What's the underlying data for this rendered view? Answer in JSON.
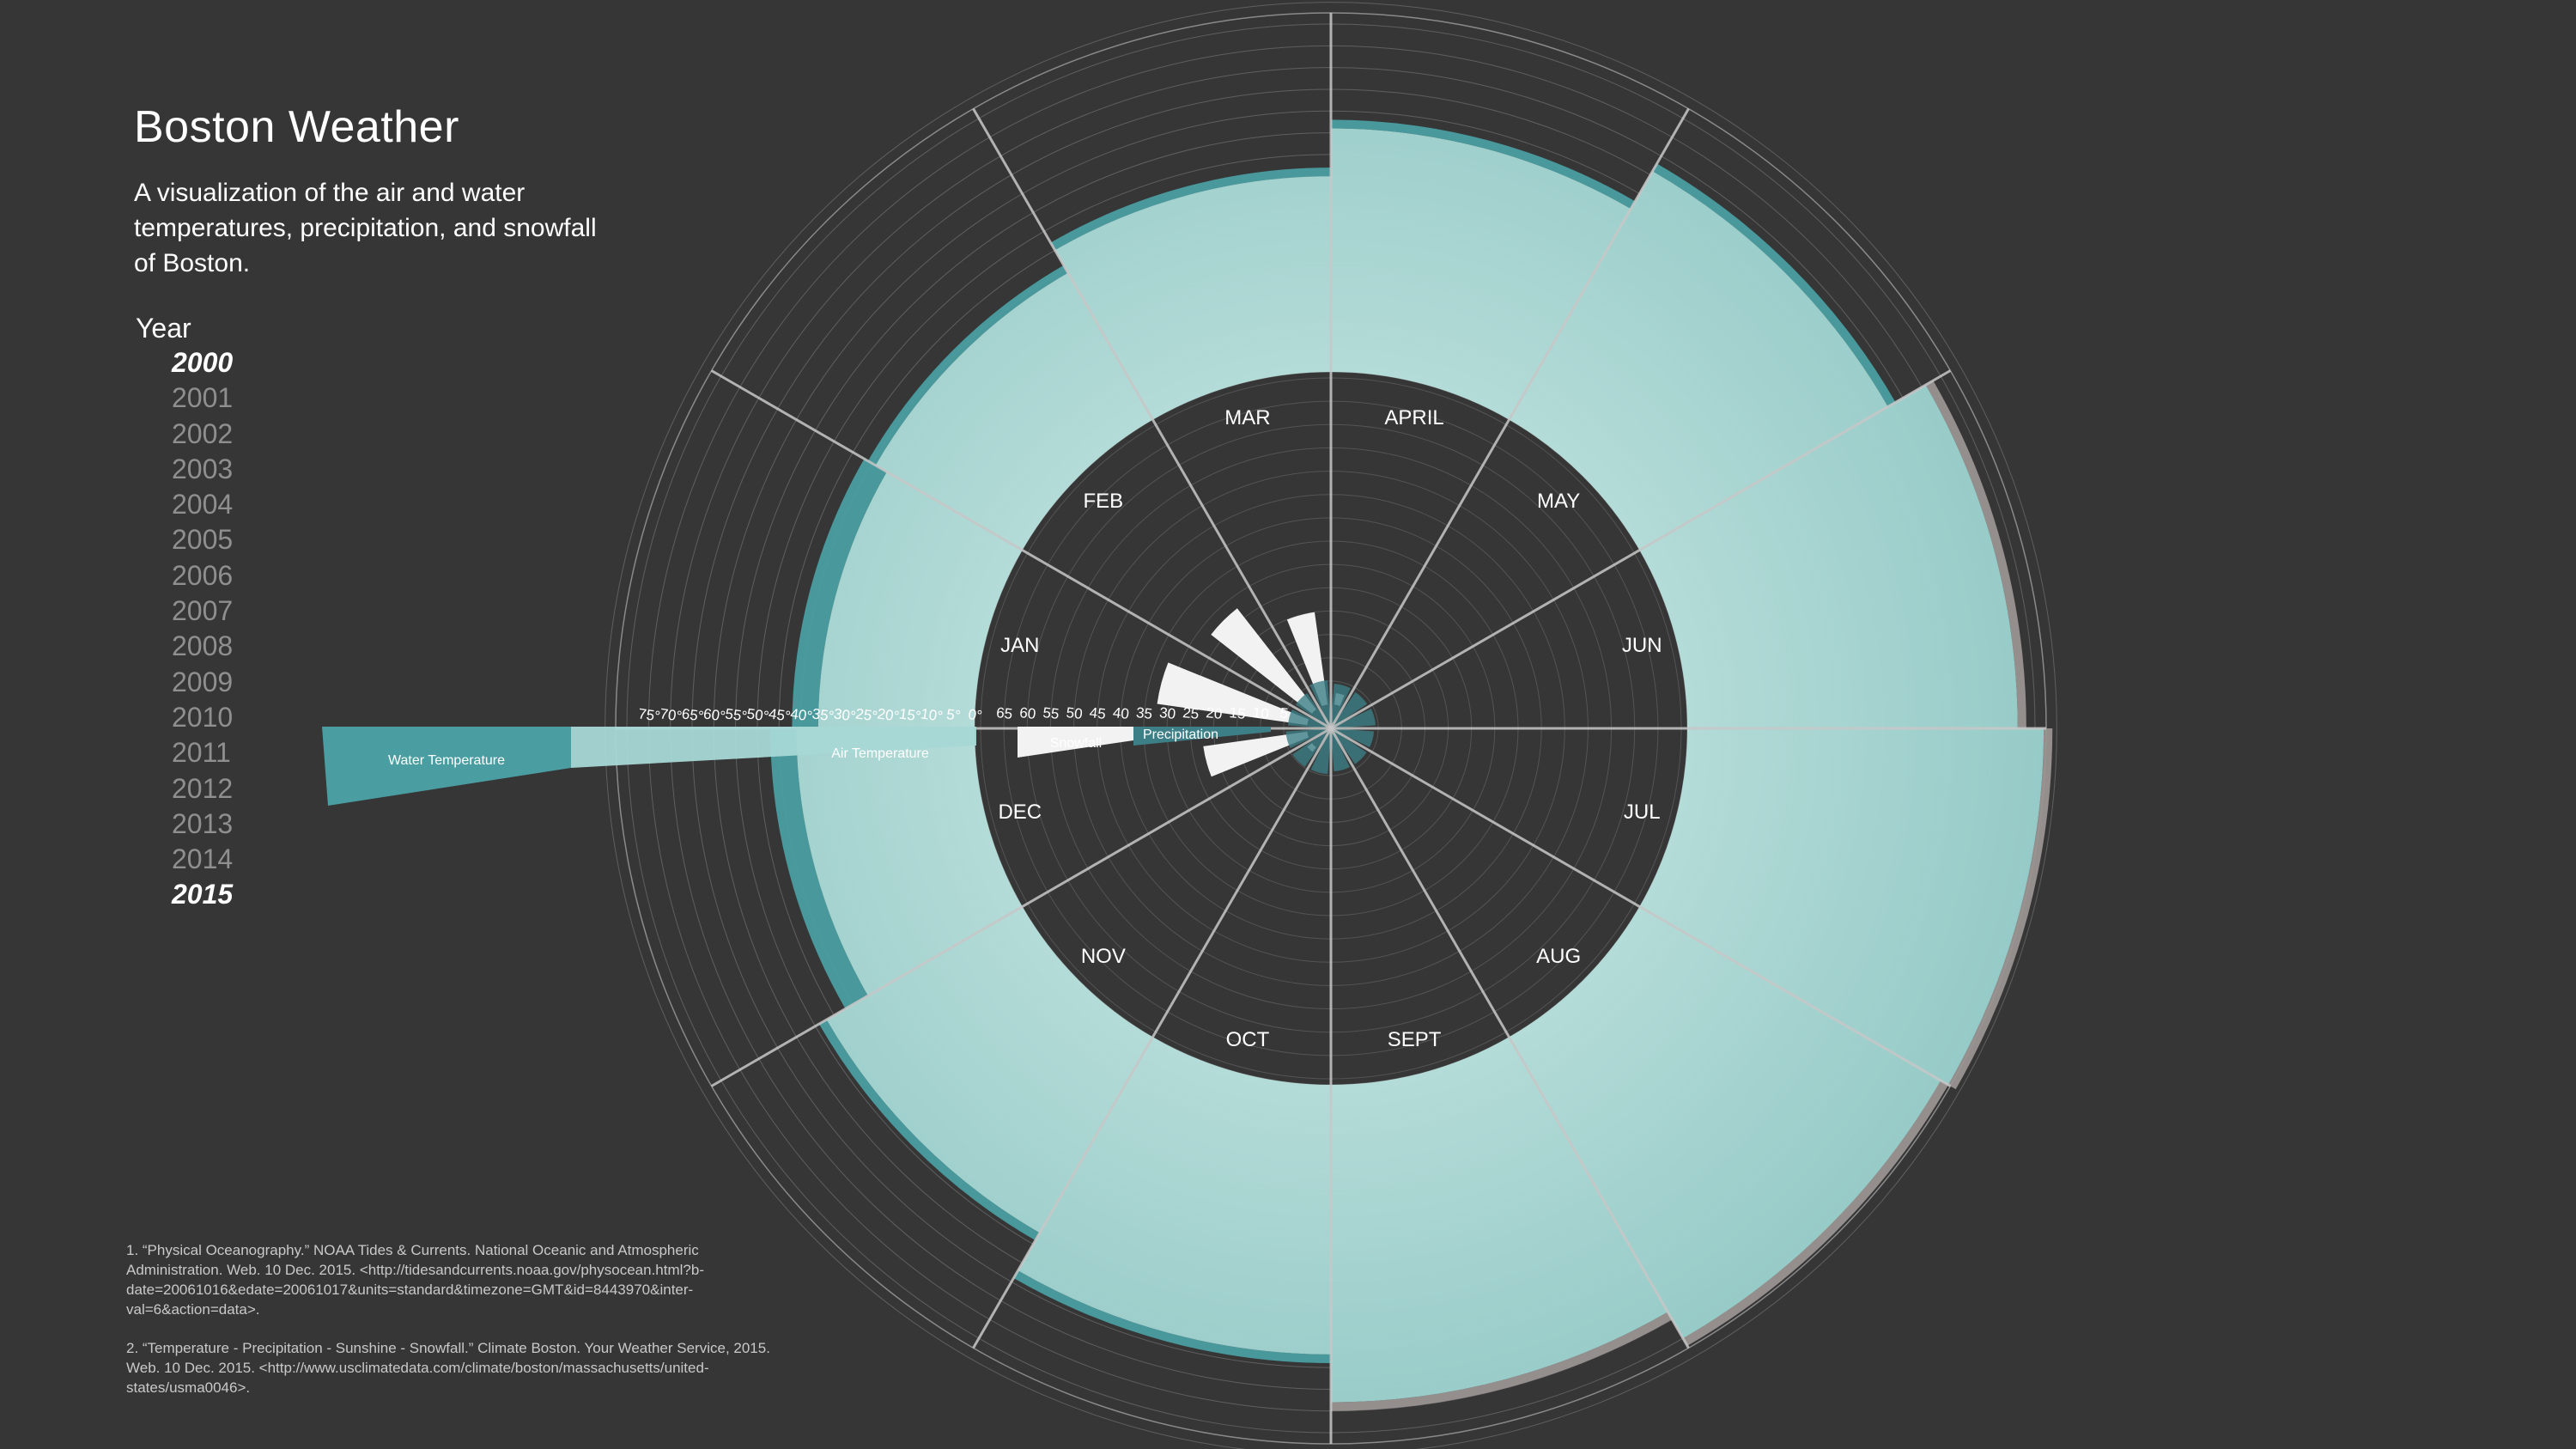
{
  "page": {
    "title": "Boston Weather",
    "subtitle": "A visualization of the air and water temperatures, precipitation, and snowfall of Boston.",
    "year_label": "Year",
    "years": [
      "2000",
      "2001",
      "2002",
      "2003",
      "2004",
      "2005",
      "2006",
      "2007",
      "2008",
      "2009",
      "2010",
      "2011",
      "2012",
      "2013",
      "2014",
      "2015"
    ],
    "selected_years": [
      "2000",
      "2015"
    ],
    "footnotes": [
      "1. “Physical Oceanography.” NOAA Tides & Currents. National Oceanic and Atmospheric Administration. Web. 10 Dec. 2015. <http://tidesandcurrents.noaa.gov/physocean.html?b-date=20061016&edate=20061017&units=standard&timezone=GMT&id=8443970&inter-val=6&action=data>.",
      "2. “Temperature - Precipitation - Sunshine - Snowfall.” Climate Boston. Your Weather Service, 2015. Web. 10 Dec. 2015. <http://www.usclimatedata.com/climate/boston/massachusetts/united-states/usma0046>."
    ]
  },
  "colors": {
    "background": "#363636",
    "grid": "#6e6e6e",
    "air_temperature": "#a7d8d6",
    "water_temperature": "#4a9ea2",
    "water_temperature_warm": "#9a9492",
    "snowfall": "#f2f2f2",
    "precipitation": "#3c7f86"
  },
  "chart_data": {
    "type": "radial",
    "categories": [
      "JAN",
      "FEB",
      "MAR",
      "APRIL",
      "MAY",
      "JUN",
      "JUL",
      "AUG",
      "SEPT",
      "OCT",
      "NOV",
      "DEC"
    ],
    "series": [
      {
        "name": "Air Temperature",
        "values": [
          36,
          39,
          45,
          56,
          66,
          76,
          82,
          80,
          73,
          62,
          52,
          41
        ]
      },
      {
        "name": "Water Temperature",
        "values": [
          40,
          38,
          40,
          47,
          55,
          63,
          69,
          70,
          65,
          58,
          51,
          45
        ]
      },
      {
        "name": "Snowfall",
        "values": [
          13,
          11,
          8,
          1,
          0,
          0,
          0,
          0,
          0,
          0,
          0.5,
          9
        ]
      },
      {
        "name": "Precipitation",
        "values": [
          3.4,
          3.3,
          4.3,
          3.7,
          3.5,
          3.7,
          3.4,
          3.4,
          3.4,
          3.9,
          4.0,
          3.8
        ]
      }
    ],
    "temperature_scale": {
      "ticks": [
        "75°",
        "70°",
        "65°",
        "60°",
        "55°",
        "50°",
        "45°",
        "40°",
        "35°",
        "30°",
        "25°",
        "20°",
        "15°",
        "10°",
        "5°",
        "0°"
      ],
      "range": [
        0,
        80
      ]
    },
    "inner_scale": {
      "ticks": [
        "65",
        "60",
        "55",
        "50",
        "45",
        "40",
        "35",
        "30",
        "25",
        "20",
        "15",
        "10",
        "5"
      ],
      "range": [
        0,
        70
      ]
    },
    "legend": [
      "Water Temperature",
      "Air Temperature",
      "Snowfall",
      "Precipitation"
    ]
  }
}
